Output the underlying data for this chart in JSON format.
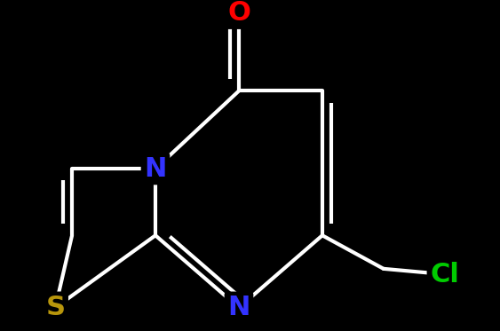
{
  "background_color": "#000000",
  "bond_color": "#ffffff",
  "bond_width": 3.0,
  "atoms": {
    "S": {
      "color": "#b8960c",
      "fontsize": 22,
      "fontweight": "bold"
    },
    "N": {
      "color": "#3333ff",
      "fontsize": 22,
      "fontweight": "bold"
    },
    "O": {
      "color": "#ff0000",
      "fontsize": 22,
      "fontweight": "bold"
    },
    "Cl": {
      "color": "#00cc00",
      "fontsize": 22,
      "fontweight": "bold"
    }
  },
  "figsize": [
    5.63,
    3.73
  ],
  "dpi": 100,
  "xlim": [
    -0.5,
    5.5
  ],
  "ylim": [
    -0.3,
    3.8
  ]
}
